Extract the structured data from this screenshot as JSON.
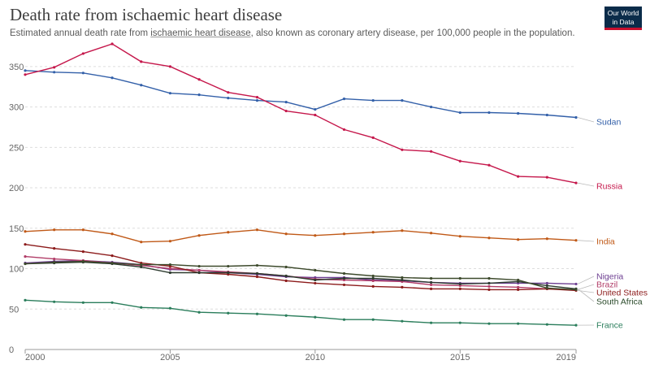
{
  "header": {
    "title": "Death rate from ischaemic heart disease",
    "subtitle_pre": "Estimated annual death rate from ",
    "subtitle_link": "ischaemic heart disease",
    "subtitle_post": ", also known as coronary artery disease, per 100,000 people in the population.",
    "logo_line1": "Our World",
    "logo_line2": "in Data"
  },
  "chart_data": {
    "type": "line",
    "title": "Death rate from ischaemic heart disease",
    "xlabel": "",
    "ylabel": "",
    "xlim": [
      2000,
      2019
    ],
    "ylim": [
      0,
      380
    ],
    "x_ticks": [
      2000,
      2005,
      2010,
      2015,
      2019
    ],
    "y_ticks": [
      0,
      50,
      100,
      150,
      200,
      250,
      300,
      350
    ],
    "x": [
      2000,
      2001,
      2002,
      2003,
      2004,
      2005,
      2006,
      2007,
      2008,
      2009,
      2010,
      2011,
      2012,
      2013,
      2014,
      2015,
      2016,
      2017,
      2018,
      2019
    ],
    "series": [
      {
        "name": "Sudan",
        "color": "#3360a9",
        "values": [
          345,
          343,
          342,
          336,
          327,
          317,
          315,
          311,
          308,
          306,
          297,
          310,
          308,
          308,
          300,
          293,
          293,
          292,
          290,
          287
        ]
      },
      {
        "name": "Russia",
        "color": "#c5174b",
        "values": [
          340,
          349,
          366,
          378,
          356,
          350,
          334,
          318,
          312,
          295,
          290,
          272,
          262,
          247,
          245,
          233,
          228,
          214,
          213,
          206
        ]
      },
      {
        "name": "India",
        "color": "#c05917",
        "values": [
          146,
          148,
          148,
          143,
          133,
          134,
          141,
          145,
          148,
          143,
          141,
          143,
          145,
          147,
          144,
          140,
          138,
          136,
          137,
          135
        ]
      },
      {
        "name": "Nigeria",
        "color": "#6d3e91",
        "values": [
          107,
          109,
          110,
          108,
          105,
          99,
          98,
          95,
          93,
          90,
          89,
          89,
          86,
          85,
          83,
          82,
          82,
          82,
          82,
          81
        ]
      },
      {
        "name": "Brazil",
        "color": "#b13d68",
        "values": [
          115,
          112,
          110,
          107,
          104,
          100,
          98,
          96,
          94,
          91,
          87,
          86,
          85,
          84,
          80,
          79,
          78,
          77,
          75,
          74
        ]
      },
      {
        "name": "United States",
        "color": "#8c1b1b",
        "values": [
          130,
          125,
          121,
          116,
          107,
          103,
          95,
          93,
          90,
          85,
          82,
          80,
          78,
          77,
          75,
          75,
          74,
          74,
          75,
          73
        ]
      },
      {
        "name": "South Africa",
        "color": "#2d3b2f",
        "values": [
          106,
          107,
          108,
          106,
          102,
          95,
          95,
          95,
          94,
          91,
          86,
          88,
          88,
          86,
          83,
          81,
          82,
          84,
          79,
          75
        ]
      },
      {
        "name": "South Africa",
        "color": "#3d4a2c",
        "values": [
          106,
          108,
          109,
          107,
          105,
          105,
          103,
          103,
          104,
          102,
          98,
          94,
          91,
          89,
          88,
          88,
          88,
          86,
          76,
          74
        ],
        "hidden": true
      },
      {
        "name": "France",
        "color": "#2a7d5b",
        "values": [
          61,
          59,
          58,
          58,
          52,
          51,
          46,
          45,
          44,
          42,
          40,
          37,
          37,
          35,
          33,
          33,
          32,
          32,
          31,
          30
        ]
      }
    ],
    "labels": [
      {
        "name": "Sudan",
        "color": "#3360a9"
      },
      {
        "name": "Russia",
        "color": "#c5174b"
      },
      {
        "name": "India",
        "color": "#c05917"
      },
      {
        "name": "Nigeria",
        "color": "#6d3e91"
      },
      {
        "name": "Brazil",
        "color": "#b13d68"
      },
      {
        "name": "United States",
        "color": "#8c1b1b"
      },
      {
        "name": "South Africa",
        "color": "#2a4a2a"
      },
      {
        "name": "France",
        "color": "#2a7d5b"
      }
    ]
  }
}
